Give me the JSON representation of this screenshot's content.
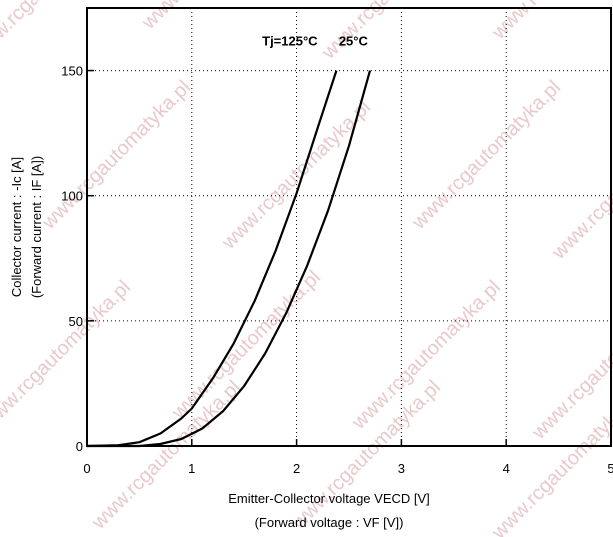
{
  "watermark": "www.rcgautomatyka.pl",
  "chart_data": {
    "type": "line",
    "xlabel": "Emitter-Collector voltage VECD [V]",
    "xlabel_sub": "(Forward voltage : VF [V])",
    "ylabel": "Collector current : -Ic [A]",
    "ylabel_sub": "(Forward current : IF [A])",
    "xlim": [
      0,
      5
    ],
    "ylim": [
      0,
      175
    ],
    "x_ticks": [
      "0",
      "1",
      "2",
      "3",
      "4",
      "5"
    ],
    "y_ticks": [
      "0",
      "50",
      "100",
      "150"
    ],
    "grid": "dotted",
    "series": [
      {
        "name": "Tj=125°C",
        "x": [
          0,
          0.3,
          0.5,
          0.7,
          0.9,
          1.0,
          1.2,
          1.4,
          1.6,
          1.8,
          2.0,
          2.2,
          2.38
        ],
        "y": [
          0,
          0.3,
          1.5,
          5,
          11,
          15,
          27,
          41,
          58,
          78,
          101,
          127,
          150
        ]
      },
      {
        "name": "25°C",
        "x": [
          0,
          0.5,
          0.7,
          0.9,
          1.1,
          1.3,
          1.5,
          1.7,
          1.9,
          2.1,
          2.3,
          2.5,
          2.7
        ],
        "y": [
          0,
          0,
          0.8,
          2.8,
          7,
          14,
          24,
          37,
          53,
          72,
          94,
          120,
          150
        ]
      }
    ],
    "annotations": [
      {
        "text": "Tj=125°C",
        "x": 2.2,
        "y": 160
      },
      {
        "text": "25°C",
        "x": 2.68,
        "y": 160
      }
    ]
  }
}
